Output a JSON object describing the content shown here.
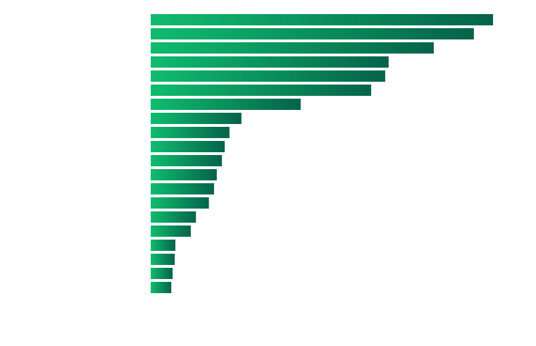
{
  "chart_data": {
    "type": "bar",
    "orientation": "horizontal",
    "categories": [
      "",
      "",
      "",
      "",
      "",
      "",
      "",
      "",
      "",
      "",
      "",
      "",
      "",
      "",
      "",
      "",
      "",
      "",
      "",
      ""
    ],
    "values": [
      100,
      94.4,
      82.7,
      69.5,
      68.5,
      64.4,
      43.8,
      26.5,
      23.0,
      21.6,
      20.8,
      19.3,
      18.5,
      17.0,
      13.2,
      11.7,
      7.2,
      7.0,
      6.4,
      6.0
    ],
    "title": "",
    "xlabel": "",
    "ylabel": "",
    "xlim": [
      0,
      100
    ],
    "grid": false,
    "legend": "none",
    "colors": {
      "bar_start": "#0fbc6e",
      "bar_end": "#05634a",
      "background": "#ffffff"
    }
  }
}
